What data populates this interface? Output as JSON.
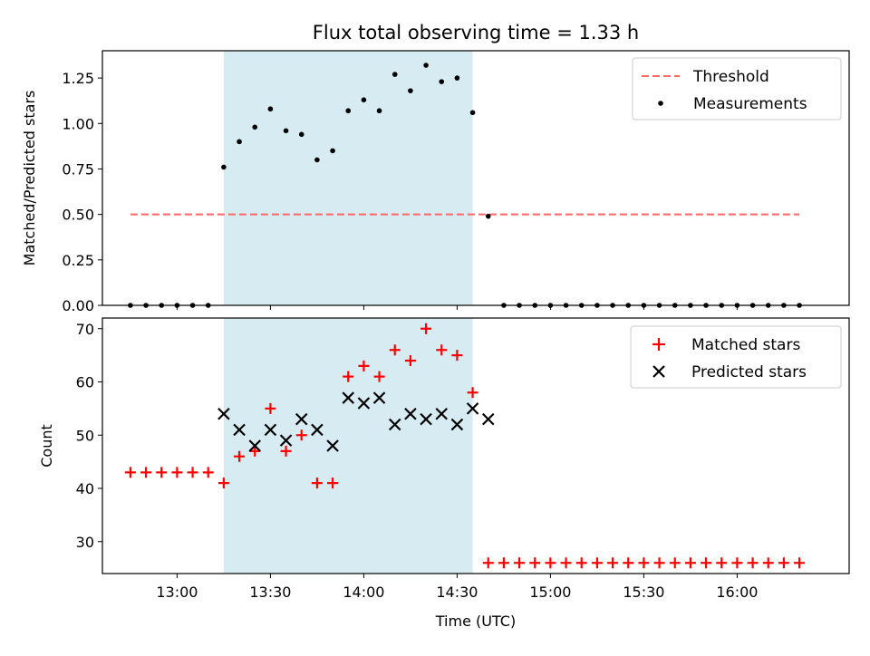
{
  "chart_data": [
    {
      "type": "scatter",
      "title": "Flux total observing time = 1.33 h",
      "xlabel": "",
      "ylabel": "Matched/Predicted stars",
      "ylim": [
        0,
        1.4
      ],
      "yticks": [
        0.0,
        0.25,
        0.5,
        0.75,
        1.0,
        1.25
      ],
      "ytick_labels": [
        "0.00",
        "0.25",
        "0.50",
        "0.75",
        "1.00",
        "1.25"
      ],
      "xlim": [
        "12:36",
        "16:36"
      ],
      "shaded_interval": [
        "13:15",
        "14:35"
      ],
      "shaded_color": "#add8e6",
      "legend_position": "top-right",
      "threshold": {
        "name": "Threshold",
        "value": 0.5,
        "x_range": [
          "12:45",
          "16:20"
        ],
        "color": "#ff6666",
        "style": "dashed"
      },
      "series": [
        {
          "name": "Measurements",
          "marker": "dot",
          "color": "#000000",
          "x": [
            "12:45",
            "12:50",
            "12:55",
            "13:00",
            "13:05",
            "13:10",
            "13:15",
            "13:20",
            "13:25",
            "13:30",
            "13:35",
            "13:40",
            "13:45",
            "13:50",
            "13:55",
            "14:00",
            "14:05",
            "14:10",
            "14:15",
            "14:20",
            "14:25",
            "14:30",
            "14:35",
            "14:40",
            "14:45",
            "14:50",
            "14:55",
            "15:00",
            "15:05",
            "15:10",
            "15:15",
            "15:20",
            "15:25",
            "15:30",
            "15:35",
            "15:40",
            "15:45",
            "15:50",
            "15:55",
            "16:00",
            "16:05",
            "16:10",
            "16:15",
            "16:20"
          ],
          "y": [
            0,
            0,
            0,
            0,
            0,
            0,
            0.76,
            0.9,
            0.98,
            1.08,
            0.96,
            0.94,
            0.8,
            0.85,
            1.07,
            1.13,
            1.07,
            1.27,
            1.18,
            1.32,
            1.23,
            1.25,
            1.06,
            0.49,
            0,
            0,
            0,
            0,
            0,
            0,
            0,
            0,
            0,
            0,
            0,
            0,
            0,
            0,
            0,
            0,
            0,
            0,
            0,
            0
          ]
        }
      ]
    },
    {
      "type": "scatter",
      "title": "",
      "xlabel": "Time (UTC)",
      "ylabel": "Count",
      "ylim": [
        24,
        72
      ],
      "yticks": [
        30,
        40,
        50,
        60,
        70
      ],
      "ytick_labels": [
        "30",
        "40",
        "50",
        "60",
        "70"
      ],
      "xlim": [
        "12:36",
        "16:36"
      ],
      "xticks": [
        "13:00",
        "13:30",
        "14:00",
        "14:30",
        "15:00",
        "15:30",
        "16:00"
      ],
      "xtick_labels": [
        "13:00",
        "13:30",
        "14:00",
        "14:30",
        "15:00",
        "15:30",
        "16:00"
      ],
      "shaded_interval": [
        "13:15",
        "14:35"
      ],
      "shaded_color": "#add8e6",
      "legend_position": "top-right",
      "series": [
        {
          "name": "Matched stars",
          "marker": "plus",
          "color": "#ff0000",
          "x": [
            "12:45",
            "12:50",
            "12:55",
            "13:00",
            "13:05",
            "13:10",
            "13:15",
            "13:20",
            "13:25",
            "13:30",
            "13:35",
            "13:40",
            "13:45",
            "13:50",
            "13:55",
            "14:00",
            "14:05",
            "14:10",
            "14:15",
            "14:20",
            "14:25",
            "14:30",
            "14:35",
            "14:40",
            "14:45",
            "14:50",
            "14:55",
            "15:00",
            "15:05",
            "15:10",
            "15:15",
            "15:20",
            "15:25",
            "15:30",
            "15:35",
            "15:40",
            "15:45",
            "15:50",
            "15:55",
            "16:00",
            "16:05",
            "16:10",
            "16:15",
            "16:20"
          ],
          "y": [
            43,
            43,
            43,
            43,
            43,
            43,
            41,
            46,
            47,
            55,
            47,
            50,
            41,
            41,
            61,
            63,
            61,
            66,
            64,
            70,
            66,
            65,
            58,
            26,
            26,
            26,
            26,
            26,
            26,
            26,
            26,
            26,
            26,
            26,
            26,
            26,
            26,
            26,
            26,
            26,
            26,
            26,
            26,
            26
          ]
        },
        {
          "name": "Predicted stars",
          "marker": "x",
          "color": "#000000",
          "x": [
            "13:15",
            "13:20",
            "13:25",
            "13:30",
            "13:35",
            "13:40",
            "13:45",
            "13:50",
            "13:55",
            "14:00",
            "14:05",
            "14:10",
            "14:15",
            "14:20",
            "14:25",
            "14:30",
            "14:35",
            "14:40"
          ],
          "y": [
            54,
            51,
            48,
            51,
            49,
            53,
            51,
            48,
            57,
            56,
            57,
            52,
            54,
            53,
            54,
            52,
            55,
            53
          ]
        }
      ]
    }
  ]
}
